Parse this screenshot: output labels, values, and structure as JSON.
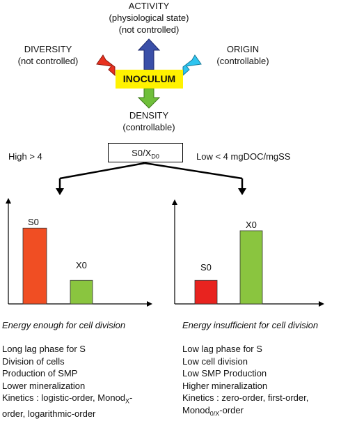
{
  "center": {
    "label": "INOCULUM"
  },
  "activity": {
    "line1": "ACTIVITY",
    "line2": "(physiological state)",
    "line3": "(not controlled)"
  },
  "diversity": {
    "line1": "DIVERSITY",
    "line2": "(not controlled)"
  },
  "origin": {
    "line1": "ORIGIN",
    "line2": "(controllable)"
  },
  "density": {
    "line1": "DENSITY",
    "line2": "(controllable)"
  },
  "ratio": {
    "main": "S0/X",
    "sub": "D0"
  },
  "high_label": "High > 4",
  "low_label": "Low < 4 mgDOC/mgSS",
  "colors": {
    "red": "#e8311f",
    "orange": "#f04e23",
    "green": "#8ac53f",
    "blue": "#3a4fa8",
    "cyan": "#2ec4ef",
    "yellow": "#fff200"
  },
  "left_chart": {
    "bars": [
      {
        "label": "S0",
        "value": 0.87
      },
      {
        "label": "X0",
        "value": 0.27
      }
    ],
    "caption": "Energy enough for cell division",
    "items": [
      "Long lag phase for S",
      "Division of cells",
      "Production of SMP",
      "Lower mineralization"
    ],
    "kinetics_a": "Kinetics : logistic-order, Monod",
    "kinetics_sub": "X",
    "kinetics_b": "-",
    "kinetics_line2": "order, logarithmic-order"
  },
  "right_chart": {
    "bars": [
      {
        "label": "S0",
        "value": 0.27
      },
      {
        "label": "X0",
        "value": 0.84
      }
    ],
    "caption": "Energy insufficient for cell division",
    "items": [
      "Low lag phase for S",
      "Low cell division",
      "Low SMP Production",
      "Higher mineralization"
    ],
    "kinetics_line1": "Kinetics : zero-order, first-order,",
    "kinetics_a": "Monod",
    "kinetics_sub": "0/X",
    "kinetics_b": "-order"
  }
}
